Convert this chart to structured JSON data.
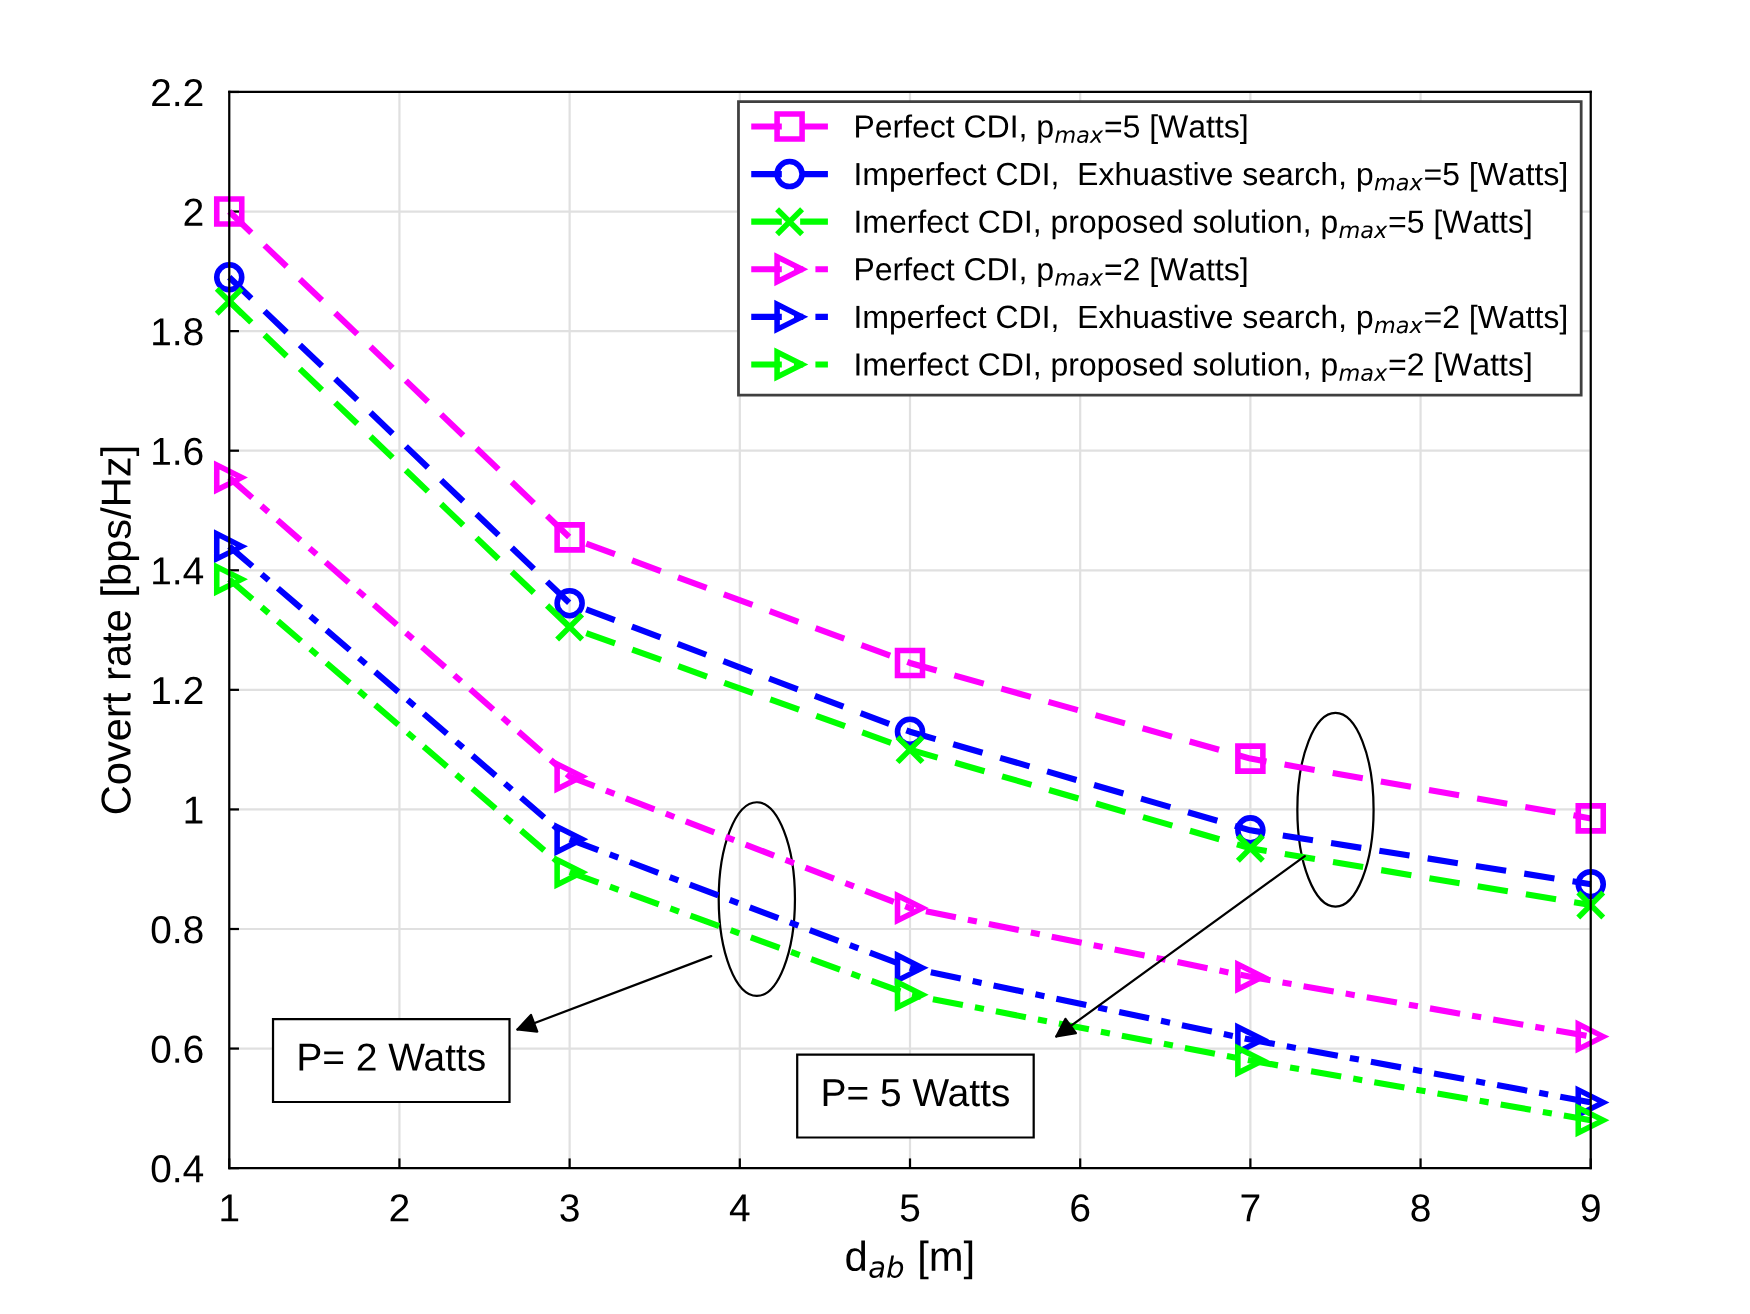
{
  "chart_data": {
    "type": "line",
    "xlabel": "d$_{ab}$ [m]",
    "ylabel": "Covert rate [bps/Hz]",
    "x": [
      1,
      3,
      5,
      7,
      9
    ],
    "series": [
      {
        "name": "Perfect CDI, p$_{max}$=5 [Watts]",
        "color": "#ff00ff",
        "marker": "square",
        "line_style": "dashed",
        "values": [
          2.0,
          1.455,
          1.245,
          1.085,
          0.985
        ]
      },
      {
        "name": "Imperfect CDI,  Exhuastive search, p$_{max}$=5 [Watts]",
        "color": "#0000ff",
        "marker": "circle",
        "line_style": "dashed",
        "values": [
          1.89,
          1.345,
          1.13,
          0.965,
          0.875
        ]
      },
      {
        "name": "Imerfect CDI, proposed solution, p$_{max}$=5 [Watts]",
        "color": "#00ff00",
        "marker": "cross",
        "line_style": "dashed",
        "values": [
          1.85,
          1.305,
          1.1,
          0.935,
          0.84
        ]
      },
      {
        "name": "Perfect CDI, p$_{max}$=2 [Watts]",
        "color": "#ff00ff",
        "marker": "triangle",
        "line_style": "dashdot",
        "values": [
          1.555,
          1.055,
          0.835,
          0.72,
          0.62
        ]
      },
      {
        "name": "Imperfect CDI,  Exhuastive search, p$_{max}$=2 [Watts]",
        "color": "#0000ff",
        "marker": "triangle",
        "line_style": "dashdot",
        "values": [
          1.44,
          0.95,
          0.735,
          0.615,
          0.51
        ]
      },
      {
        "name": "Imerfect CDI, proposed solution, p$_{max}$=2 [Watts]",
        "color": "#00ff00",
        "marker": "triangle",
        "line_style": "dashdot",
        "values": [
          1.385,
          0.895,
          0.69,
          0.58,
          0.48
        ]
      }
    ],
    "annotations": [
      "P= 2 Watts",
      "P= 5 Watts"
    ],
    "xlim": [
      1,
      9
    ],
    "ylim": [
      0.4,
      2.2
    ],
    "xticks": [
      1,
      2,
      3,
      4,
      5,
      6,
      7,
      8,
      9
    ],
    "yticks": [
      0.4,
      0.6,
      0.8,
      1,
      1.2,
      1.4,
      1.6,
      1.8,
      2,
      2.2
    ],
    "grid": true,
    "legend": "top right"
  }
}
